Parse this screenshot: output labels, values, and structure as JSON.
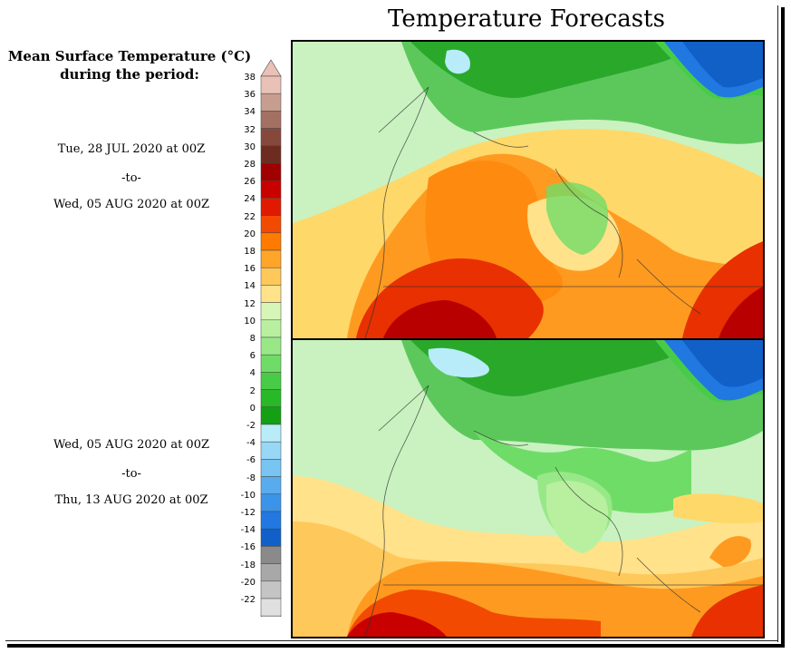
{
  "title": "Temperature Forecasts",
  "legend": {
    "title_line1": "Mean Surface Temperature (°C)",
    "title_line2": "during the period:",
    "ticks": [
      "38",
      "36",
      "34",
      "32",
      "30",
      "28",
      "26",
      "24",
      "22",
      "20",
      "18",
      "16",
      "14",
      "12",
      "10",
      "8",
      "6",
      "4",
      "2",
      "0",
      "-2",
      "-4",
      "-6",
      "-8",
      "-10",
      "-12",
      "-14",
      "-16",
      "-18",
      "-20",
      "-22"
    ],
    "colors": [
      "#e9c1b6",
      "#c79d90",
      "#a37064",
      "#86483c",
      "#6e2c20",
      "#a00000",
      "#c80000",
      "#e01a00",
      "#f24a00",
      "#ff7a00",
      "#ffa52a",
      "#ffc85a",
      "#ffe28a",
      "#d8f5b8",
      "#b8f0a0",
      "#98e888",
      "#70dc68",
      "#48cc48",
      "#28b828",
      "#14a014",
      "#b8ecf8",
      "#98d8f6",
      "#78c4f2",
      "#58acee",
      "#3c94e8",
      "#2078e0",
      "#1060c8",
      "#8a8a8a",
      "#a8a8a8",
      "#c4c4c4",
      "#e0e0e0"
    ]
  },
  "periods": [
    {
      "start": "Tue, 28 JUL 2020 at 00Z",
      "sep": "-to-",
      "end": "Wed, 05 AUG 2020 at 00Z"
    },
    {
      "start": "Wed, 05 AUG 2020 at 00Z",
      "sep": "-to-",
      "end": "Thu, 13 AUG 2020 at 00Z"
    }
  ],
  "maps": [
    {
      "period": "Tue, 28 JUL 2020 at 00Z to Wed, 05 AUG 2020 at 00Z",
      "dominant": "warm"
    },
    {
      "period": "Wed, 05 AUG 2020 at 00Z to Thu, 13 AUG 2020 at 00Z",
      "dominant": "cooler"
    }
  ]
}
